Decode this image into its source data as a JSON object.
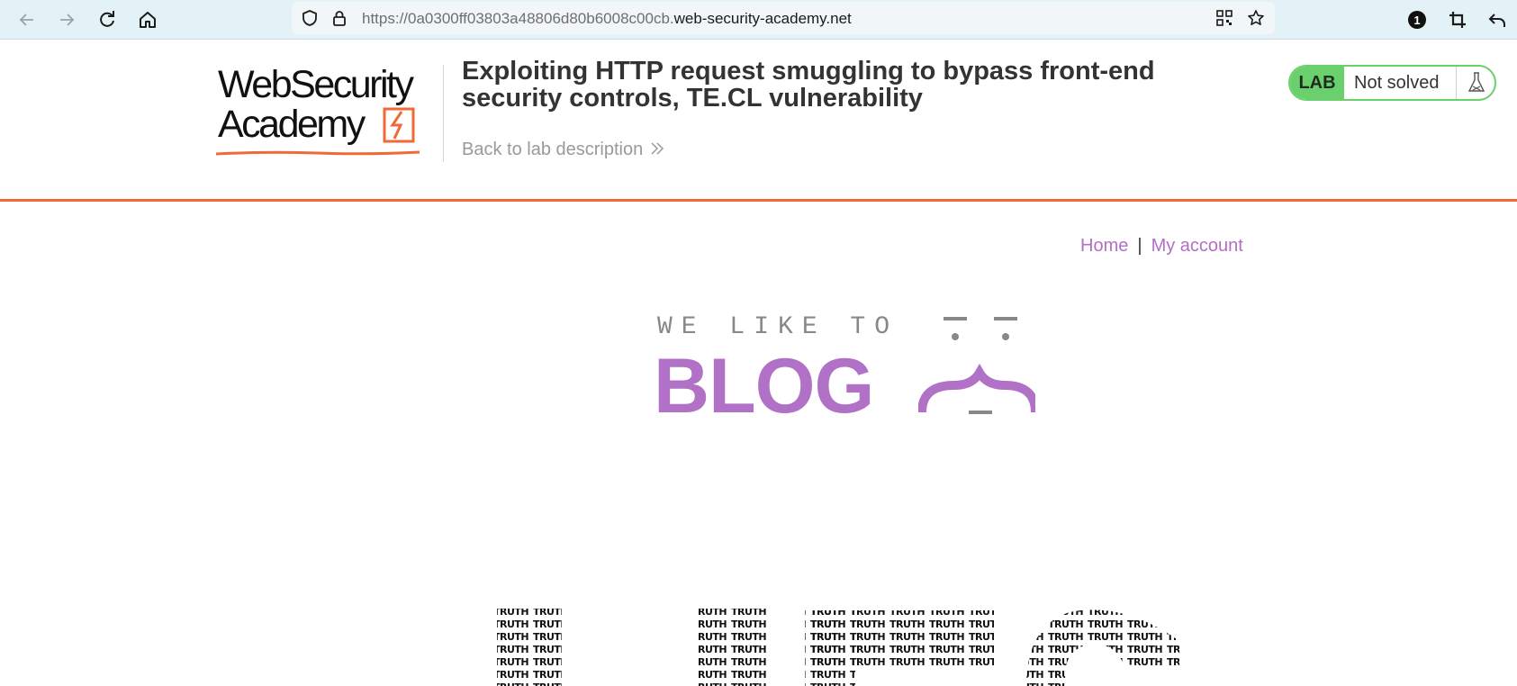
{
  "browser": {
    "url_prefix": "https://0a0300ff03803a48806d80b6008c00cb.",
    "url_host": "web-security-academy.net",
    "extensions_badge": "1"
  },
  "lab": {
    "logo_line1": "WebSecurity",
    "logo_line2": "Academy",
    "title": "Exploiting HTTP request smuggling to bypass front-end security controls, TE.CL vulnerability",
    "back_link": "Back to lab description",
    "badge_label": "LAB",
    "status": "Not solved"
  },
  "nav": {
    "home": "Home",
    "separator": "|",
    "account": "My account"
  },
  "blog_logo": {
    "line1": "WE LIKE TO",
    "line2": "BLOG"
  },
  "hero": {
    "text": "TRUTH"
  },
  "colors": {
    "toolbar": "#e3f2f6",
    "accent_orange": "#ef6a36",
    "lab_green": "#6ad06d",
    "link_purple": "#b36fc4",
    "blog_purple": "#b071c6"
  }
}
